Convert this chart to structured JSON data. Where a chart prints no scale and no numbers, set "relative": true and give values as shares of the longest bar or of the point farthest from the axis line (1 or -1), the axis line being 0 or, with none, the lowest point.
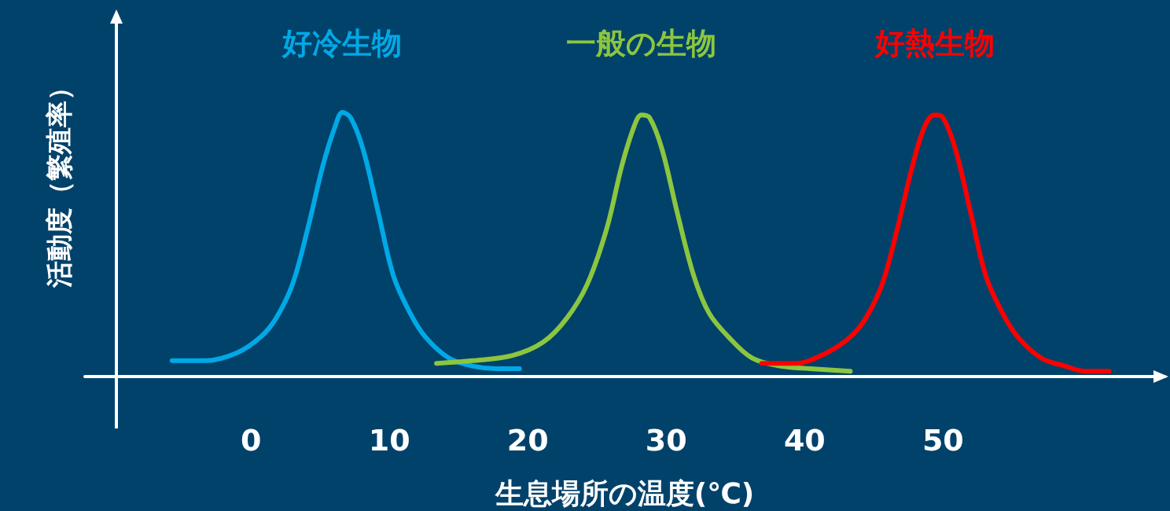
{
  "chart_data": {
    "type": "line",
    "relative": true,
    "xlabel": "生息場所の温度(℃)",
    "ylabel": "活動度（繁殖率）",
    "xlim": [
      -12,
      66
    ],
    "xticks": [
      0,
      10,
      20,
      30,
      40,
      50
    ],
    "grid": false,
    "legend": false,
    "marker": "none",
    "line_style": "solid",
    "series": [
      {
        "name": "好冷生物",
        "color": "#00a9e6",
        "x": [
          -5.7,
          -3.3,
          -1.0,
          0.7,
          1.8,
          3.0,
          4.1,
          5.2,
          6.1,
          6.6,
          7.2,
          8.1,
          9.2,
          10.3,
          11.5,
          12.6,
          14.3,
          16.0,
          17.7,
          19.4
        ],
        "values": [
          0.06,
          0.06,
          0.09,
          0.15,
          0.22,
          0.35,
          0.56,
          0.8,
          0.95,
          1.0,
          0.98,
          0.86,
          0.62,
          0.38,
          0.24,
          0.15,
          0.07,
          0.04,
          0.03,
          0.03
        ]
      },
      {
        "name": "一般の生物",
        "color": "#8cc63f",
        "x": [
          13.4,
          16.0,
          18.9,
          21.1,
          22.8,
          24.3,
          25.7,
          26.8,
          27.7,
          28.2,
          28.8,
          29.7,
          30.8,
          32.0,
          33.1,
          34.5,
          36.2,
          38.2,
          40.4,
          43.3
        ],
        "values": [
          0.05,
          0.06,
          0.08,
          0.13,
          0.22,
          0.35,
          0.56,
          0.8,
          0.95,
          0.99,
          0.98,
          0.86,
          0.62,
          0.38,
          0.24,
          0.15,
          0.07,
          0.04,
          0.03,
          0.02
        ]
      },
      {
        "name": "好熱生物",
        "color": "#ff0000",
        "x": [
          36.9,
          39.3,
          41.6,
          43.3,
          44.4,
          45.6,
          46.7,
          47.8,
          48.7,
          49.4,
          50.0,
          50.9,
          52.0,
          53.1,
          54.3,
          55.4,
          57.1,
          58.8,
          60.3,
          62.0
        ],
        "values": [
          0.05,
          0.05,
          0.09,
          0.15,
          0.22,
          0.35,
          0.56,
          0.8,
          0.95,
          0.99,
          0.98,
          0.86,
          0.62,
          0.38,
          0.24,
          0.15,
          0.07,
          0.04,
          0.02,
          0.02
        ]
      }
    ]
  }
}
